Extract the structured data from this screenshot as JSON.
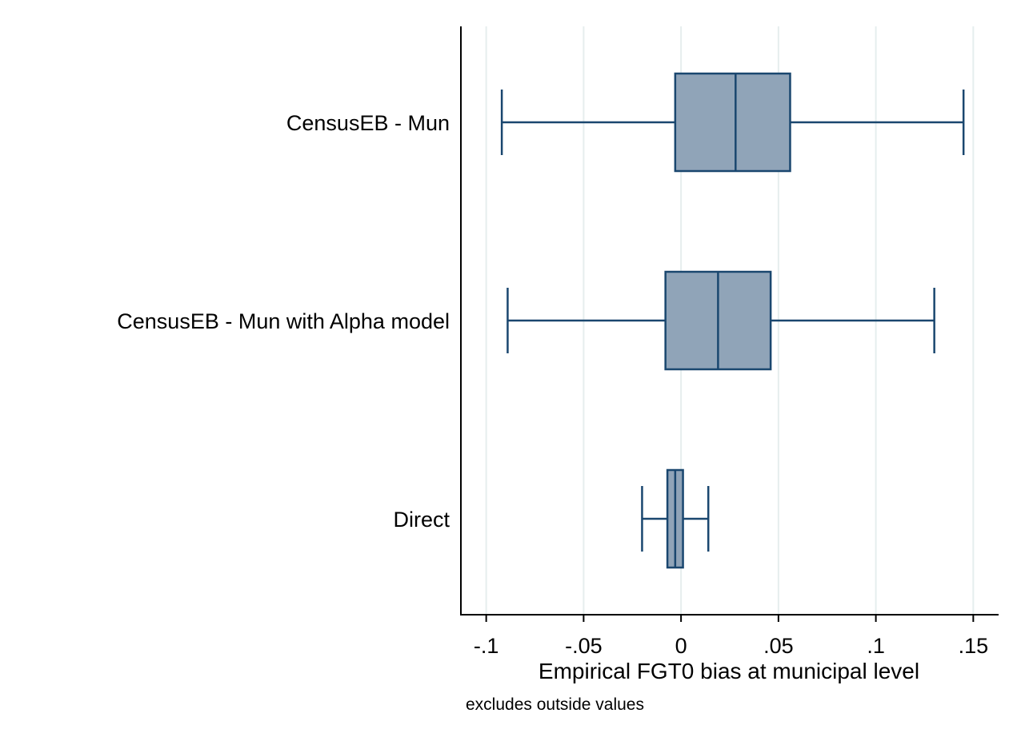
{
  "chart_data": {
    "type": "boxplot",
    "orientation": "horizontal",
    "categories": [
      "CensusEB - Mun",
      "CensusEB - Mun with Alpha model",
      "Direct"
    ],
    "boxes": [
      {
        "category": "CensusEB - Mun",
        "whisker_low": -0.092,
        "q1": -0.003,
        "median": 0.028,
        "q3": 0.056,
        "whisker_high": 0.145
      },
      {
        "category": "CensusEB - Mun with Alpha model",
        "whisker_low": -0.089,
        "q1": -0.008,
        "median": 0.019,
        "q3": 0.046,
        "whisker_high": 0.13
      },
      {
        "category": "Direct",
        "whisker_low": -0.02,
        "q1": -0.007,
        "median": -0.003,
        "q3": 0.001,
        "whisker_high": 0.014
      }
    ],
    "xlim": [
      -0.113,
      0.163
    ],
    "x_ticks": [
      -0.1,
      -0.05,
      0,
      0.05,
      0.1,
      0.15
    ],
    "x_tick_labels": [
      "-.1",
      "-.05",
      "0",
      ".05",
      ".1",
      ".15"
    ],
    "xlabel": "Empirical FGT0 bias at municipal level",
    "note": "excludes outside values",
    "grid": "vertical",
    "colors": {
      "box_fill": "#90a4b8",
      "box_stroke": "#1a476f",
      "grid": "#e6eeee",
      "axis": "#000000"
    }
  }
}
